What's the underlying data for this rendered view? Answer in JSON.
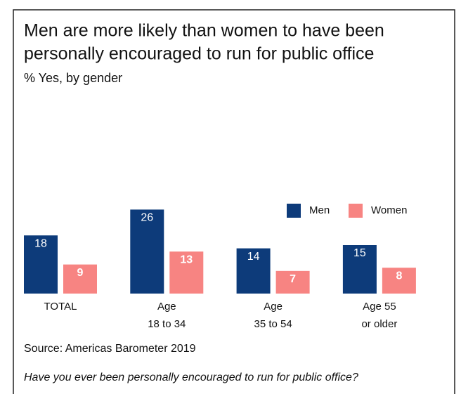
{
  "chart_data": {
    "type": "bar",
    "title": [
      "Men are more likely than women to have been",
      "personally encouraged to run for public office"
    ],
    "subtitle": "% Yes, by gender",
    "categories": [
      [
        "TOTAL"
      ],
      [
        "Age",
        "18 to 34"
      ],
      [
        "Age",
        "35 to 54"
      ],
      [
        "Age 55",
        "or older"
      ]
    ],
    "series": [
      {
        "name": "Men",
        "color": "#0d3b7a",
        "values": [
          18,
          26,
          14,
          15
        ]
      },
      {
        "name": "Women",
        "color": "#f78482",
        "values": [
          9,
          13,
          7,
          8
        ]
      }
    ],
    "ylim": [
      0,
      30
    ],
    "source": "Source: Americas Barometer 2019",
    "note": "Have you ever been personally encouraged to run for public office?"
  }
}
